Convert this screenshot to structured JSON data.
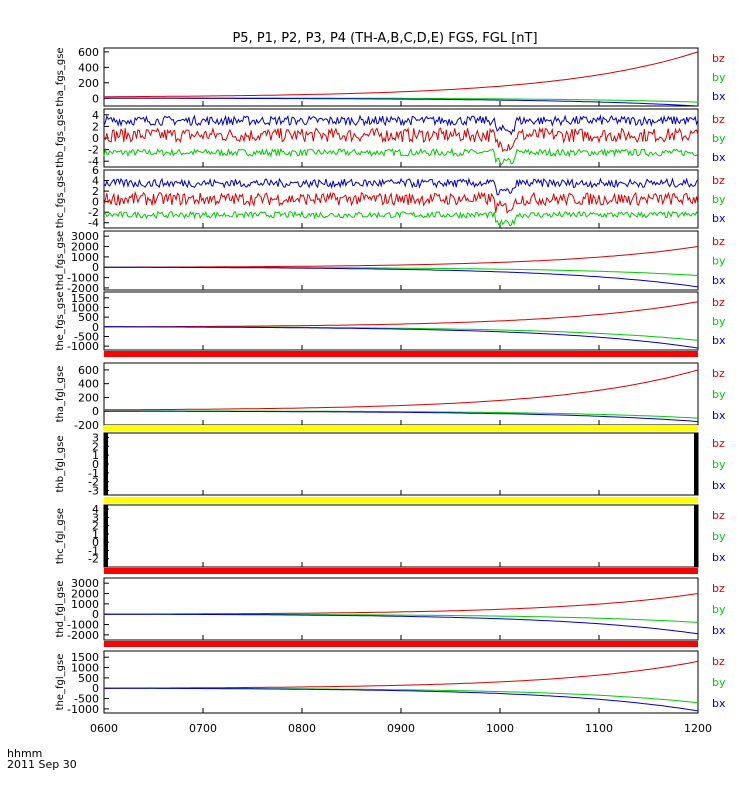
{
  "title": "P5, P1, P2, P3, P4 (TH-A,B,C,D,E) FGS, FGL [nT]",
  "footer": {
    "line1": "hhmm",
    "line2": "2011 Sep 30"
  },
  "xaxis": {
    "ticks": [
      "0600",
      "0700",
      "0800",
      "0900",
      "1000",
      "1100",
      "1200"
    ],
    "range": [
      6,
      12
    ]
  },
  "colors": {
    "bz": "#dd0000",
    "by": "#00cc00",
    "bx": "#0000cc",
    "bar_red": "#ff0000",
    "bar_yellow": "#ffff00"
  },
  "chart_data": [
    {
      "type": "line",
      "ylabel": "tha_fgs_gse",
      "ylim": [
        -100,
        650
      ],
      "yticks": [
        "600",
        "400",
        "200",
        "0"
      ],
      "legend": [
        "bz",
        "by",
        "bx"
      ],
      "series": [
        {
          "name": "bz",
          "shape": "rise",
          "start": 20,
          "end": 600
        },
        {
          "name": "by",
          "shape": "dip",
          "start": 5,
          "end": -50
        },
        {
          "name": "bx",
          "shape": "dip",
          "start": 0,
          "end": -100
        }
      ]
    },
    {
      "type": "line",
      "ylabel": "thb_fgs_gse",
      "ylim": [
        -5,
        5
      ],
      "yticks": [
        "4",
        "2",
        "0",
        "-2",
        "-4"
      ],
      "legend": [
        "bz",
        "by",
        "bx"
      ],
      "series": [
        {
          "name": "bz",
          "shape": "noise",
          "level": 0.5,
          "amp": 1.2
        },
        {
          "name": "by",
          "shape": "noise",
          "level": -2.5,
          "amp": 0.6
        },
        {
          "name": "bx",
          "shape": "noise",
          "level": 3,
          "amp": 0.8
        }
      ]
    },
    {
      "type": "line",
      "ylabel": "thc_fgs_gse",
      "ylim": [
        -5,
        6
      ],
      "yticks": [
        "6",
        "4",
        "2",
        "0",
        "-2",
        "-4"
      ],
      "legend": [
        "bz",
        "by",
        "bx"
      ],
      "series": [
        {
          "name": "bz",
          "shape": "noise",
          "level": 0.5,
          "amp": 1.2
        },
        {
          "name": "by",
          "shape": "noise",
          "level": -2.5,
          "amp": 0.6
        },
        {
          "name": "bx",
          "shape": "noise",
          "level": 3.5,
          "amp": 0.8
        }
      ]
    },
    {
      "type": "line",
      "ylabel": "thd_fgs_gse",
      "ylim": [
        -2200,
        3500
      ],
      "yticks": [
        "3000",
        "2000",
        "1000",
        "0",
        "-1000",
        "-2000"
      ],
      "legend": [
        "bz",
        "by",
        "bx"
      ],
      "series": [
        {
          "name": "bz",
          "shape": "rise",
          "start": 0,
          "end": 2000
        },
        {
          "name": "by",
          "shape": "dip",
          "start": 0,
          "end": -800
        },
        {
          "name": "bx",
          "shape": "dip",
          "start": 0,
          "end": -1900
        }
      ]
    },
    {
      "type": "line",
      "ylabel": "the_fgs_gse",
      "ylim": [
        -1200,
        1800
      ],
      "yticks": [
        "1500",
        "1000",
        "500",
        "0",
        "-500",
        "-1000"
      ],
      "legend": [
        "bz",
        "by",
        "bx"
      ],
      "series": [
        {
          "name": "bz",
          "shape": "rise",
          "start": 0,
          "end": 1300
        },
        {
          "name": "by",
          "shape": "dip",
          "start": 0,
          "end": -700
        },
        {
          "name": "bx",
          "shape": "dip",
          "start": 0,
          "end": -1100
        }
      ]
    },
    {
      "type": "line",
      "ylabel": "tha_fgl_gse",
      "ylim": [
        -200,
        700
      ],
      "yticks": [
        "600",
        "400",
        "200",
        "0",
        "-200"
      ],
      "legend": [
        "bz",
        "by",
        "bx"
      ],
      "series": [
        {
          "name": "bz",
          "shape": "rise",
          "start": 20,
          "end": 600
        },
        {
          "name": "by",
          "shape": "dip",
          "start": 5,
          "end": -100
        },
        {
          "name": "bx",
          "shape": "dip",
          "start": 0,
          "end": -150
        }
      ]
    },
    {
      "type": "line",
      "ylabel": "thb_fgl_gse",
      "ylim": [
        -3.5,
        3.5
      ],
      "yticks": [
        "3",
        "2",
        "1",
        "0",
        "-1",
        "-2",
        "-3"
      ],
      "legend": [
        "bz",
        "by",
        "bx"
      ],
      "series": []
    },
    {
      "type": "line",
      "ylabel": "thc_fgl_gse",
      "ylim": [
        -3,
        4.5
      ],
      "yticks": [
        "4",
        "3",
        "2",
        "1",
        "0",
        "-1",
        "-2"
      ],
      "legend": [
        "bz",
        "by",
        "bx"
      ],
      "series": []
    },
    {
      "type": "line",
      "ylabel": "thd_fgl_gse",
      "ylim": [
        -2500,
        3500
      ],
      "yticks": [
        "3000",
        "2000",
        "1000",
        "0",
        "-1000",
        "-2000"
      ],
      "legend": [
        "bz",
        "by",
        "bx"
      ],
      "series": [
        {
          "name": "bz",
          "shape": "rise",
          "start": 0,
          "end": 2000
        },
        {
          "name": "by",
          "shape": "dip",
          "start": 0,
          "end": -800
        },
        {
          "name": "bx",
          "shape": "dip",
          "start": 0,
          "end": -1900
        }
      ]
    },
    {
      "type": "line",
      "ylabel": "the_fgl_gse",
      "ylim": [
        -1200,
        1800
      ],
      "yticks": [
        "1500",
        "1000",
        "500",
        "0",
        "-500",
        "-1000"
      ],
      "legend": [
        "bz",
        "by",
        "bx"
      ],
      "series": [
        {
          "name": "bz",
          "shape": "rise",
          "start": 0,
          "end": 1300
        },
        {
          "name": "by",
          "shape": "dip",
          "start": 0,
          "end": -700
        },
        {
          "name": "bx",
          "shape": "dip",
          "start": 0,
          "end": -1100
        }
      ]
    }
  ],
  "status_bars": [
    {
      "color": "bar_red"
    },
    {
      "color": "bar_yellow"
    },
    {
      "color": "bar_yellow"
    },
    {
      "color": "bar_red"
    },
    {
      "color": "bar_red"
    }
  ]
}
